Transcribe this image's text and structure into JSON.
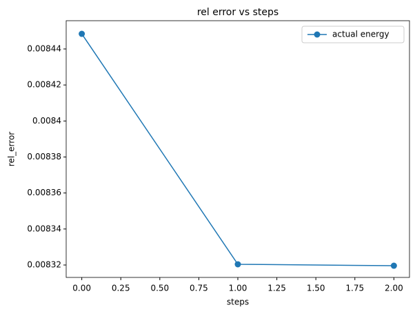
{
  "chart_data": {
    "type": "line",
    "title": "rel error vs steps",
    "xlabel": "steps",
    "ylabel": "rel_error",
    "x": [
      0,
      1,
      2
    ],
    "series": [
      {
        "name": "actual energy",
        "color": "#1f77b4",
        "values": [
          0.0084484,
          0.0083204,
          0.0083196
        ]
      }
    ],
    "xlim": [
      -0.1,
      2.1
    ],
    "xticks": [
      {
        "value": 0,
        "label": "0.00"
      },
      {
        "value": 0.25,
        "label": "0.25"
      },
      {
        "value": 0.5,
        "label": "0.50"
      },
      {
        "value": 0.75,
        "label": "0.75"
      },
      {
        "value": 1,
        "label": "1.00"
      },
      {
        "value": 1.25,
        "label": "1.25"
      },
      {
        "value": 1.5,
        "label": "1.50"
      },
      {
        "value": 1.75,
        "label": "1.75"
      },
      {
        "value": 2,
        "label": "2.00"
      }
    ],
    "ylim": [
      0.0083131,
      0.0084557
    ],
    "yticks": [
      0.00832,
      0.00834,
      0.00836,
      0.00838,
      0.0084,
      0.00842,
      0.00844
    ],
    "legend": "upper right",
    "grid": false
  }
}
